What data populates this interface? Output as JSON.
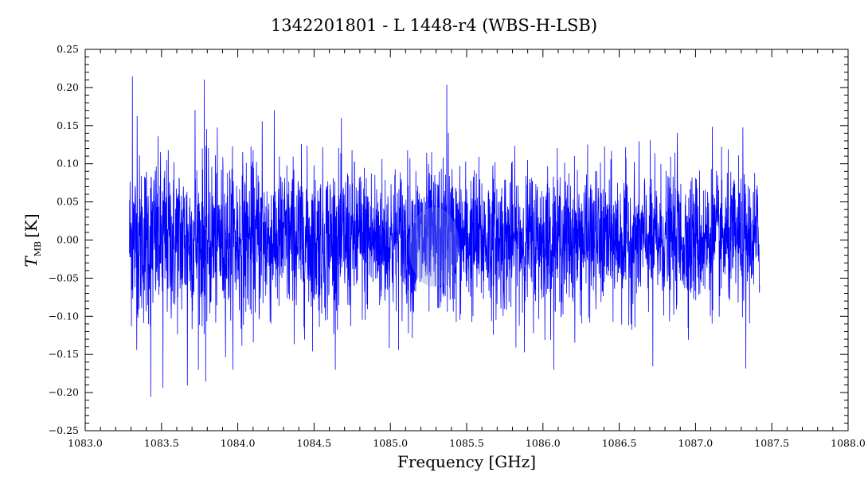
{
  "chart_data": {
    "type": "line",
    "title": "1342201801 - L 1448-r4 (WBS-H-LSB)",
    "xlabel": "Frequency [GHz]",
    "ylabel": {
      "symbol": "T",
      "subscript": "MB",
      "unit": "[K]"
    },
    "xlim": [
      1083.0,
      1088.0
    ],
    "ylim": [
      -0.25,
      0.25
    ],
    "x_ticks": [
      "1083.0",
      "1083.5",
      "1084.0",
      "1084.5",
      "1085.0",
      "1085.5",
      "1086.0",
      "1086.5",
      "1087.0",
      "1087.5",
      "1088.0"
    ],
    "y_ticks": [
      "−0.25",
      "−0.20",
      "−0.15",
      "−0.10",
      "−0.05",
      "0.00",
      "0.05",
      "0.10",
      "0.15",
      "0.20",
      "0.25"
    ],
    "grid": false,
    "series": [
      {
        "color": "#0000ff",
        "x_start": 1083.29,
        "x_end": 1087.42,
        "noise_rms_start": 0.055,
        "noise_rms_end": 0.042,
        "peaks": [
          {
            "x": 1083.31,
            "y": 0.214
          },
          {
            "x": 1083.34,
            "y": 0.162
          },
          {
            "x": 1083.43,
            "y": -0.205
          },
          {
            "x": 1083.51,
            "y": -0.193
          },
          {
            "x": 1083.67,
            "y": -0.19
          },
          {
            "x": 1083.72,
            "y": 0.17
          },
          {
            "x": 1083.78,
            "y": 0.21
          },
          {
            "x": 1083.79,
            "y": -0.185
          },
          {
            "x": 1084.16,
            "y": 0.155
          },
          {
            "x": 1085.37,
            "y": 0.203
          },
          {
            "x": 1085.38,
            "y": 0.14
          },
          {
            "x": 1086.72,
            "y": -0.165
          },
          {
            "x": 1086.88,
            "y": 0.14
          },
          {
            "x": 1087.11,
            "y": 0.148
          },
          {
            "x": 1087.31,
            "y": 0.147
          },
          {
            "x": 1087.33,
            "y": -0.168
          }
        ]
      }
    ]
  }
}
